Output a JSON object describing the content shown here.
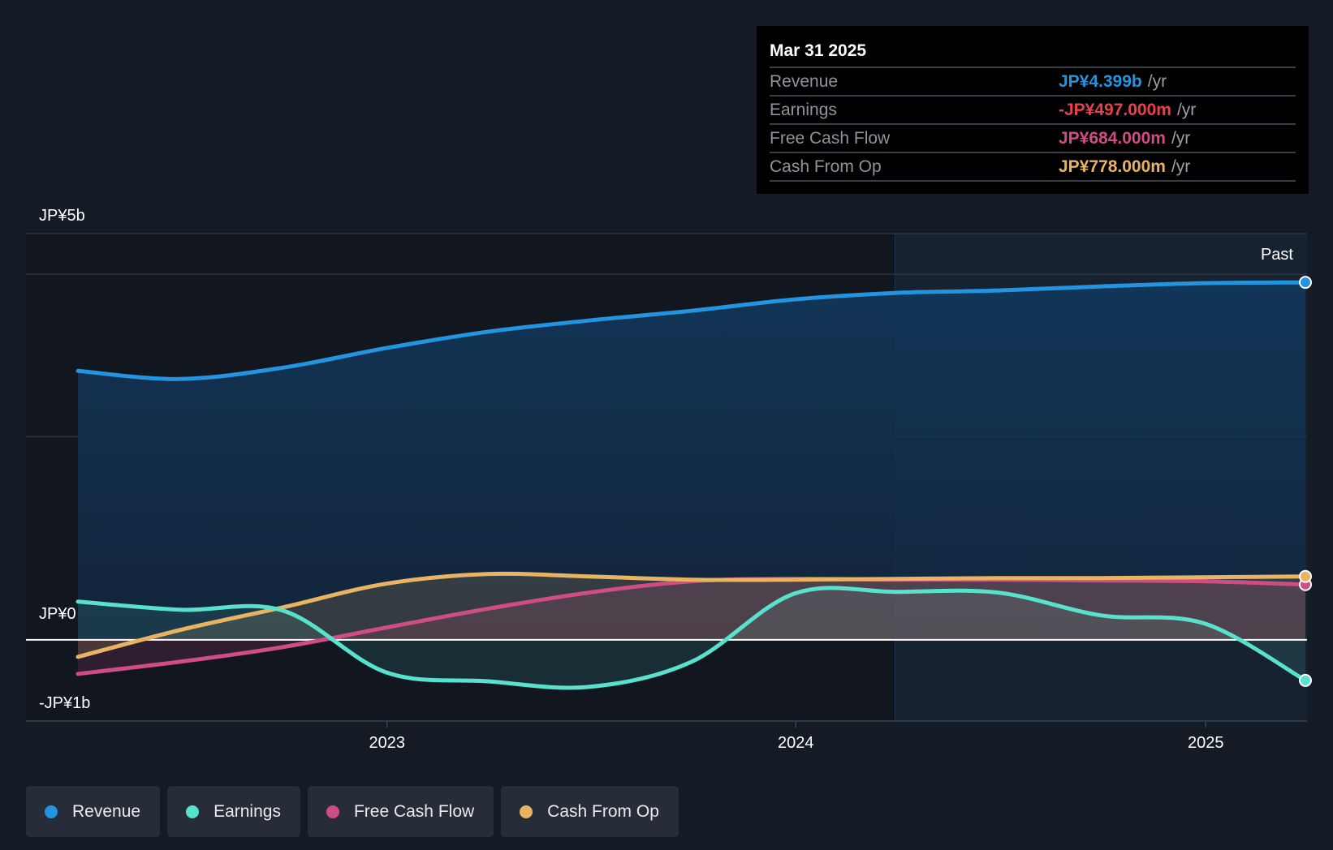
{
  "chart_data": {
    "type": "line",
    "y_axis_labels": [
      "JP¥5b",
      "JP¥0",
      "-JP¥1b"
    ],
    "x_tick_labels": [
      "2023",
      "2024",
      "2025"
    ],
    "period_label": "Past",
    "ylim": [
      -1.0,
      5.0
    ],
    "y_unit": "JP¥ billions",
    "series": [
      {
        "name": "Revenue",
        "color": "#2394df",
        "points": [
          [
            "2022-03-31",
            3.31
          ],
          [
            "2022-06-30",
            3.21
          ],
          [
            "2022-09-30",
            3.35
          ],
          [
            "2022-12-31",
            3.59
          ],
          [
            "2023-03-31",
            3.79
          ],
          [
            "2023-06-30",
            3.93
          ],
          [
            "2023-09-30",
            4.05
          ],
          [
            "2023-12-31",
            4.19
          ],
          [
            "2024-03-31",
            4.27
          ],
          [
            "2024-06-30",
            4.3
          ],
          [
            "2024-09-30",
            4.35
          ],
          [
            "2024-12-31",
            4.39
          ],
          [
            "2025-03-31",
            4.4
          ]
        ]
      },
      {
        "name": "Earnings",
        "color": "#58e1cd",
        "points": [
          [
            "2022-03-31",
            0.47
          ],
          [
            "2022-06-30",
            0.37
          ],
          [
            "2022-09-30",
            0.36
          ],
          [
            "2022-12-31",
            -0.4
          ],
          [
            "2023-03-31",
            -0.51
          ],
          [
            "2023-06-30",
            -0.58
          ],
          [
            "2023-09-30",
            -0.27
          ],
          [
            "2023-12-31",
            0.57
          ],
          [
            "2024-03-31",
            0.59
          ],
          [
            "2024-06-30",
            0.58
          ],
          [
            "2024-09-30",
            0.3
          ],
          [
            "2024-12-31",
            0.2
          ],
          [
            "2025-03-31",
            -0.5
          ]
        ]
      },
      {
        "name": "Free Cash Flow",
        "color": "#cf4c84",
        "points": [
          [
            "2022-03-31",
            -0.42
          ],
          [
            "2022-06-30",
            -0.27
          ],
          [
            "2022-09-30",
            -0.09
          ],
          [
            "2022-12-31",
            0.15
          ],
          [
            "2023-03-31",
            0.38
          ],
          [
            "2023-06-30",
            0.58
          ],
          [
            "2023-09-30",
            0.72
          ],
          [
            "2023-12-31",
            0.75
          ],
          [
            "2024-03-31",
            0.74
          ],
          [
            "2024-06-30",
            0.74
          ],
          [
            "2024-09-30",
            0.73
          ],
          [
            "2024-12-31",
            0.72
          ],
          [
            "2025-03-31",
            0.68
          ]
        ]
      },
      {
        "name": "Cash From Op",
        "color": "#e8b463",
        "points": [
          [
            "2022-03-31",
            -0.21
          ],
          [
            "2022-06-30",
            0.12
          ],
          [
            "2022-09-30",
            0.4
          ],
          [
            "2022-12-31",
            0.69
          ],
          [
            "2023-03-31",
            0.81
          ],
          [
            "2023-06-30",
            0.78
          ],
          [
            "2023-09-30",
            0.74
          ],
          [
            "2023-12-31",
            0.74
          ],
          [
            "2024-03-31",
            0.75
          ],
          [
            "2024-06-30",
            0.76
          ],
          [
            "2024-09-30",
            0.76
          ],
          [
            "2024-12-31",
            0.77
          ],
          [
            "2025-03-31",
            0.78
          ]
        ]
      }
    ]
  },
  "tooltip": {
    "date": "Mar 31 2025",
    "rows": [
      {
        "label": "Revenue",
        "value": "JP¥4.399b",
        "unit": "/yr",
        "color": "#2394df"
      },
      {
        "label": "Earnings",
        "value": "-JP¥497.000m",
        "unit": "/yr",
        "color": "#e6424c"
      },
      {
        "label": "Free Cash Flow",
        "value": "JP¥684.000m",
        "unit": "/yr",
        "color": "#cf4c84"
      },
      {
        "label": "Cash From Op",
        "value": "JP¥778.000m",
        "unit": "/yr",
        "color": "#e8b463"
      }
    ]
  },
  "legend": [
    {
      "label": "Revenue",
      "color": "#2394df"
    },
    {
      "label": "Earnings",
      "color": "#58e1cd"
    },
    {
      "label": "Free Cash Flow",
      "color": "#cf4c84"
    },
    {
      "label": "Cash From Op",
      "color": "#e8b463"
    }
  ]
}
